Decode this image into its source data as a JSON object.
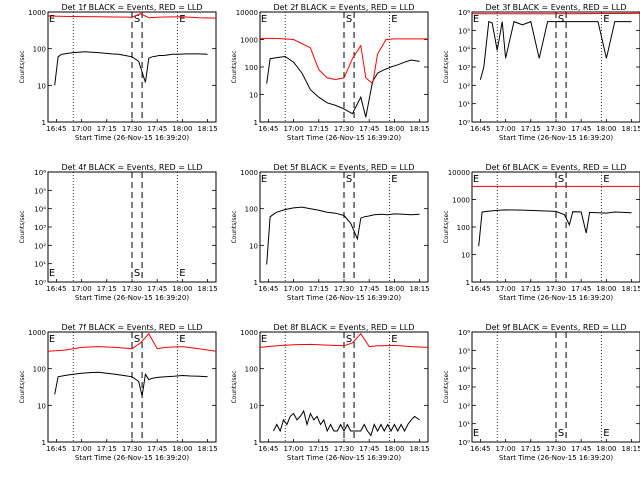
{
  "figure": {
    "title": ""
  },
  "chart_data": [
    {
      "type": "line",
      "title": "Det 1f BLACK = Events, RED = LLD",
      "xlabel": "Start Time (26-Nov-15 16:39:20)",
      "ylabel": "Counts/sec",
      "ylog": true,
      "ylim": [
        1,
        1000
      ],
      "yticks": [
        "1",
        "10",
        "100",
        "1000"
      ],
      "xticks": [
        "16:45",
        "17:00",
        "17:15",
        "17:30",
        "17:45",
        "18:00",
        "18:15"
      ],
      "markers": [
        "E",
        "S",
        "E"
      ],
      "series": [
        {
          "role": "events",
          "color": "#000000",
          "x": [
            0.04,
            0.06,
            0.08,
            0.1,
            0.12,
            0.15,
            0.18,
            0.22,
            0.26,
            0.3,
            0.34,
            0.38,
            0.42,
            0.46,
            0.5,
            0.54,
            0.58,
            0.6,
            0.62,
            0.64,
            0.66,
            0.68,
            0.7,
            0.72,
            0.74,
            0.78,
            0.82,
            0.86,
            0.9,
            0.95
          ],
          "y": [
            10,
            60,
            70,
            72,
            75,
            78,
            80,
            82,
            80,
            78,
            75,
            72,
            70,
            65,
            60,
            45,
            12,
            55,
            60,
            62,
            65,
            65,
            66,
            68,
            70,
            70,
            72,
            72,
            72,
            70
          ]
        },
        {
          "role": "lld",
          "color": "#ff0000",
          "x": [
            0,
            0.1,
            0.2,
            0.3,
            0.4,
            0.5,
            0.55,
            0.6,
            0.65,
            0.7,
            0.8,
            0.9,
            1.0
          ],
          "y": [
            780,
            760,
            750,
            740,
            730,
            720,
            900,
            700,
            720,
            730,
            740,
            700,
            680
          ]
        }
      ]
    },
    {
      "type": "line",
      "title": "Det 2f BLACK = Events, RED = LLD",
      "xlabel": "Start Time (26-Nov-15 16:39:20)",
      "ylabel": "Counts/sec",
      "ylog": true,
      "ylim": [
        1,
        10000
      ],
      "yticks": [
        "1",
        "10",
        "100",
        "1000",
        "10000"
      ],
      "xticks": [
        "16:45",
        "17:00",
        "17:15",
        "17:30",
        "17:45",
        "18:00",
        "18:15"
      ],
      "markers": [
        "E",
        "S",
        "E"
      ],
      "series": [
        {
          "role": "events",
          "color": "#000000",
          "x": [
            0.04,
            0.06,
            0.1,
            0.15,
            0.2,
            0.25,
            0.3,
            0.35,
            0.4,
            0.45,
            0.5,
            0.55,
            0.6,
            0.63,
            0.67,
            0.7,
            0.74,
            0.78,
            0.82,
            0.86,
            0.9,
            0.95
          ],
          "y": [
            25,
            200,
            220,
            240,
            150,
            60,
            15,
            8,
            5,
            4,
            3,
            2,
            8,
            1.5,
            30,
            60,
            80,
            100,
            120,
            150,
            180,
            160
          ]
        },
        {
          "role": "lld",
          "color": "#ff0000",
          "x": [
            0,
            0.1,
            0.2,
            0.3,
            0.35,
            0.4,
            0.45,
            0.5,
            0.55,
            0.6,
            0.63,
            0.67,
            0.7,
            0.75,
            0.8,
            0.9,
            1.0
          ],
          "y": [
            1100,
            1100,
            1000,
            500,
            80,
            40,
            35,
            40,
            200,
            600,
            40,
            25,
            300,
            1000,
            1050,
            1050,
            1050
          ]
        }
      ]
    },
    {
      "type": "line",
      "title": "Det 3f BLACK = Events, RED = LLD",
      "xlabel": "Start Time (26-Nov-15 16:39:20)",
      "ylabel": "Counts/sec",
      "ylog": true,
      "ylim": [
        1,
        1000000
      ],
      "yticks": [
        "10⁰",
        "10¹",
        "10²",
        "10³",
        "10⁴",
        "10⁵",
        "10⁶"
      ],
      "xticks": [
        "16:45",
        "17:00",
        "17:15",
        "17:30",
        "17:45",
        "18:00",
        "18:15"
      ],
      "markers": [
        "E",
        "S",
        "E"
      ],
      "series": [
        {
          "role": "events",
          "color": "#000000",
          "x": [
            0.05,
            0.07,
            0.1,
            0.12,
            0.15,
            0.18,
            0.2,
            0.25,
            0.3,
            0.35,
            0.4,
            0.45,
            0.5,
            0.55,
            0.6,
            0.65,
            0.7,
            0.75,
            0.8,
            0.85,
            0.9,
            0.95
          ],
          "y": [
            200,
            1000,
            300000,
            250000,
            8000,
            300000,
            3000,
            300000,
            200000,
            300000,
            3000,
            300000,
            300000,
            300000,
            300000,
            300000,
            300000,
            300000,
            3000,
            300000,
            300000,
            300000
          ]
        },
        {
          "role": "lld",
          "color": "#ff0000",
          "x": [
            0,
            0.5,
            1.0
          ],
          "y": [
            800000,
            800000,
            850000
          ]
        }
      ]
    },
    {
      "type": "line",
      "title": "Det 4f BLACK = Events, RED = LLD",
      "xlabel": "Start Time (26-Nov-15 16:39:20)",
      "ylabel": "Counts/sec",
      "ylog": true,
      "ylim": [
        1,
        1000000
      ],
      "yticks": [
        "10⁰",
        "10¹",
        "10²",
        "10³",
        "10⁴",
        "10⁵",
        "10⁶"
      ],
      "xticks": [
        "16:45",
        "17:00",
        "17:15",
        "17:30",
        "17:45",
        "18:00",
        "18:15"
      ],
      "markers": [
        "E",
        "S",
        "E"
      ],
      "series": []
    },
    {
      "type": "line",
      "title": "Det 5f BLACK = Events, RED = LLD",
      "xlabel": "Start Time (26-Nov-15 16:39:20)",
      "ylabel": "Counts/sec",
      "ylog": true,
      "ylim": [
        1,
        1000
      ],
      "yticks": [
        "1",
        "10",
        "100",
        "1000"
      ],
      "xticks": [
        "16:45",
        "17:00",
        "17:15",
        "17:30",
        "17:45",
        "18:00",
        "18:15"
      ],
      "markers": [
        "E",
        "S",
        "E"
      ],
      "series": [
        {
          "role": "events",
          "color": "#000000",
          "x": [
            0.04,
            0.06,
            0.08,
            0.1,
            0.15,
            0.2,
            0.25,
            0.3,
            0.35,
            0.4,
            0.45,
            0.5,
            0.54,
            0.58,
            0.6,
            0.62,
            0.64,
            0.66,
            0.68,
            0.72,
            0.76,
            0.8,
            0.85,
            0.9,
            0.95
          ],
          "y": [
            3,
            60,
            70,
            80,
            95,
            105,
            110,
            100,
            90,
            80,
            75,
            65,
            40,
            15,
            55,
            60,
            62,
            65,
            68,
            70,
            68,
            72,
            70,
            68,
            70
          ]
        }
      ]
    },
    {
      "type": "line",
      "title": "Det 6f BLACK = Events, RED = LLD",
      "xlabel": "Start Time (26-Nov-15 16:39:20)",
      "ylabel": "Counts/sec",
      "ylog": true,
      "ylim": [
        1,
        10000
      ],
      "yticks": [
        "1",
        "10",
        "100",
        "1000",
        "10000"
      ],
      "xticks": [
        "16:45",
        "17:00",
        "17:15",
        "17:30",
        "17:45",
        "18:00",
        "18:15"
      ],
      "markers": [
        "E",
        "S",
        "E"
      ],
      "series": [
        {
          "role": "events",
          "color": "#000000",
          "x": [
            0.04,
            0.06,
            0.1,
            0.15,
            0.2,
            0.3,
            0.4,
            0.5,
            0.55,
            0.58,
            0.6,
            0.65,
            0.68,
            0.7,
            0.75,
            0.8,
            0.85,
            0.9,
            0.95
          ],
          "y": [
            20,
            350,
            380,
            400,
            420,
            410,
            390,
            370,
            280,
            120,
            360,
            350,
            60,
            340,
            330,
            320,
            350,
            340,
            330
          ]
        },
        {
          "role": "lld",
          "color": "#ff0000",
          "x": [
            0,
            0.5,
            1.0
          ],
          "y": [
            3000,
            3000,
            3000
          ]
        }
      ]
    },
    {
      "type": "line",
      "title": "Det 7f BLACK = Events, RED = LLD",
      "xlabel": "Start Time (26-Nov-15 16:39:20)",
      "ylabel": "Counts/sec",
      "ylog": true,
      "ylim": [
        1,
        1000
      ],
      "yticks": [
        "1",
        "10",
        "100",
        "1000"
      ],
      "xticks": [
        "16:45",
        "17:00",
        "17:15",
        "17:30",
        "17:45",
        "18:00",
        "18:15"
      ],
      "markers": [
        "E",
        "S",
        "E"
      ],
      "series": [
        {
          "role": "events",
          "color": "#000000",
          "x": [
            0.04,
            0.06,
            0.1,
            0.15,
            0.2,
            0.25,
            0.3,
            0.35,
            0.4,
            0.45,
            0.5,
            0.54,
            0.56,
            0.58,
            0.6,
            0.62,
            0.66,
            0.7,
            0.75,
            0.8,
            0.85,
            0.9,
            0.95
          ],
          "y": [
            20,
            60,
            65,
            70,
            75,
            78,
            80,
            75,
            70,
            65,
            60,
            45,
            18,
            70,
            50,
            55,
            58,
            60,
            62,
            65,
            63,
            62,
            60
          ]
        },
        {
          "role": "lld",
          "color": "#ff0000",
          "x": [
            0,
            0.1,
            0.2,
            0.3,
            0.4,
            0.5,
            0.55,
            0.6,
            0.65,
            0.7,
            0.8,
            0.9,
            1.0
          ],
          "y": [
            300,
            320,
            380,
            400,
            380,
            350,
            500,
            900,
            350,
            380,
            400,
            350,
            300
          ]
        }
      ]
    },
    {
      "type": "line",
      "title": "Det 8f BLACK = Events, RED = LLD",
      "xlabel": "Start Time (26-Nov-15 16:39:20)",
      "ylabel": "Counts/sec",
      "ylog": true,
      "ylim": [
        1,
        1000
      ],
      "yticks": [
        "1",
        "10",
        "100",
        "1000"
      ],
      "xticks": [
        "16:45",
        "17:00",
        "17:15",
        "17:30",
        "17:45",
        "18:00",
        "18:15"
      ],
      "markers": [
        "E",
        "S",
        "E"
      ],
      "series": [
        {
          "role": "events",
          "color": "#000000",
          "x": [
            0.08,
            0.1,
            0.12,
            0.14,
            0.16,
            0.18,
            0.2,
            0.22,
            0.24,
            0.26,
            0.28,
            0.3,
            0.32,
            0.34,
            0.36,
            0.38,
            0.4,
            0.42,
            0.44,
            0.46,
            0.48,
            0.5,
            0.52,
            0.54,
            0.6,
            0.62,
            0.64,
            0.66,
            0.68,
            0.7,
            0.72,
            0.74,
            0.76,
            0.78,
            0.8,
            0.82,
            0.84,
            0.86,
            0.88,
            0.9,
            0.92,
            0.95
          ],
          "y": [
            2,
            3,
            2,
            4,
            3,
            5,
            6,
            4,
            5,
            7,
            3,
            6,
            4,
            5,
            3,
            4,
            2,
            3,
            2,
            2,
            3,
            2,
            3,
            2,
            2,
            3,
            2,
            1.5,
            3,
            2,
            3,
            2,
            3,
            2,
            3,
            2,
            3,
            2,
            3,
            4,
            5,
            4
          ]
        },
        {
          "role": "lld",
          "color": "#ff0000",
          "x": [
            0,
            0.1,
            0.2,
            0.3,
            0.4,
            0.5,
            0.55,
            0.6,
            0.65,
            0.7,
            0.8,
            0.9,
            1.0
          ],
          "y": [
            380,
            420,
            450,
            460,
            440,
            420,
            500,
            900,
            400,
            420,
            430,
            400,
            380
          ]
        }
      ]
    },
    {
      "type": "line",
      "title": "Det 9f BLACK = Events, RED = LLD",
      "xlabel": "Start Time (26-Nov-15 16:39:20)",
      "ylabel": "Counts/sec",
      "ylog": true,
      "ylim": [
        1,
        1000000
      ],
      "yticks": [
        "10⁰",
        "10¹",
        "10²",
        "10³",
        "10⁴",
        "10⁵",
        "10⁶"
      ],
      "xticks": [
        "16:45",
        "17:00",
        "17:15",
        "17:30",
        "17:45",
        "18:00",
        "18:15"
      ],
      "markers": [
        "E",
        "S",
        "E"
      ],
      "series": []
    }
  ]
}
